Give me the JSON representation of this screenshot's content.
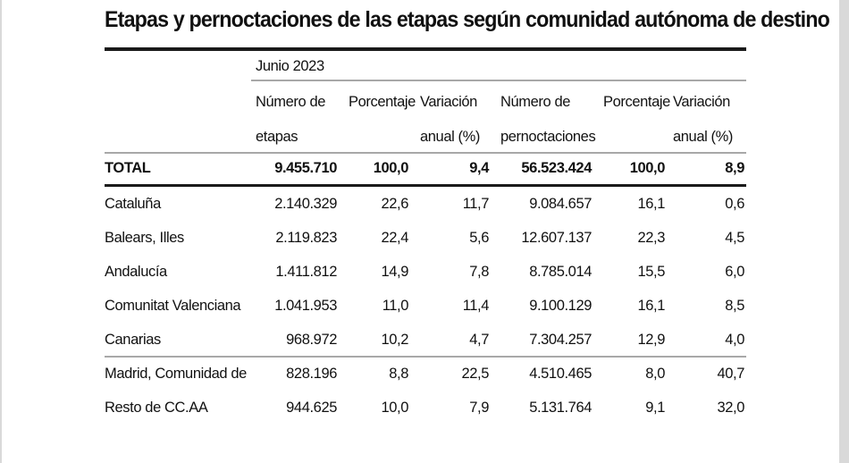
{
  "title": "Etapas y pernoctaciones de las etapas según comunidad autónoma de destino",
  "period": "Junio 2023",
  "columns": [
    {
      "line1": "Número de",
      "line2": "etapas"
    },
    {
      "line1": "Porcentaje",
      "line2": ""
    },
    {
      "line1": "Variación",
      "line2": "anual (%)"
    },
    {
      "line1": "Número de",
      "line2": "pernoctaciones"
    },
    {
      "line1": "Porcentaje",
      "line2": ""
    },
    {
      "line1": "Variación",
      "line2": "anual (%)"
    }
  ],
  "total": {
    "label": "TOTAL",
    "values": [
      "9.455.710",
      "100,0",
      "9,4",
      "56.523.424",
      "100,0",
      "8,9"
    ]
  },
  "rows": [
    {
      "label": "Cataluña",
      "values": [
        "2.140.329",
        "22,6",
        "11,7",
        "9.084.657",
        "16,1",
        "0,6"
      ]
    },
    {
      "label": "Balears, Illes",
      "values": [
        "2.119.823",
        "22,4",
        "5,6",
        "12.607.137",
        "22,3",
        "4,5"
      ]
    },
    {
      "label": "Andalucía",
      "values": [
        "1.411.812",
        "14,9",
        "7,8",
        "8.785.014",
        "15,5",
        "6,0"
      ]
    },
    {
      "label": "Comunitat Valenciana",
      "values": [
        "1.041.953",
        "11,0",
        "11,4",
        "9.100.129",
        "16,1",
        "8,5"
      ]
    },
    {
      "label": "Canarias",
      "values": [
        "968.972",
        "10,2",
        "4,7",
        "7.304.257",
        "12,9",
        "4,0"
      ]
    },
    {
      "label": "Madrid, Comunidad de",
      "values": [
        "828.196",
        "8,8",
        "22,5",
        "4.510.465",
        "8,0",
        "40,7"
      ]
    },
    {
      "label": "Resto de CC.AA",
      "values": [
        "944.625",
        "10,0",
        "7,9",
        "5.131.764",
        "9,1",
        "32,0"
      ]
    }
  ]
}
